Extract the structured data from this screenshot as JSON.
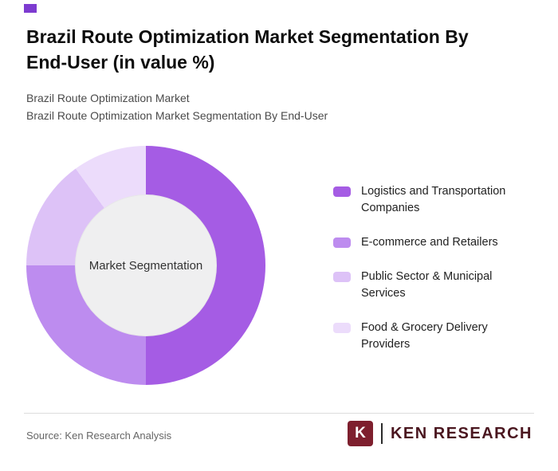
{
  "brand": {
    "accent": "#7d3bd0"
  },
  "page": {
    "title": "Brazil Route Optimization Market Segmentation By End-User (in value %)",
    "subtitle_line1": "Brazil Route Optimization Market",
    "subtitle_line2": "Brazil Route Optimization Market Segmentation By End-User"
  },
  "chart_data": {
    "type": "pie",
    "variant": "donut",
    "title": "Brazil Route Optimization Market Segmentation By End-User (in value %)",
    "center_label": "Market Segmentation",
    "categories": [
      "Logistics and Transportation Companies",
      "E-commerce and Retailers",
      "Public Sector & Municipal Services",
      "Food & Grocery Delivery Providers"
    ],
    "values": [
      50,
      25,
      15,
      10
    ],
    "values_note": "percent of market value, estimated from arc angles (no data labels shown)",
    "colors": [
      "#a55ce4",
      "#bd8cef",
      "#ddc2f7",
      "#ecdcfb"
    ],
    "start_angle_deg": 0,
    "direction": "clockwise",
    "legend_position": "right",
    "hole_color": "#efeff0"
  },
  "footer": {
    "source": "Source: Ken Research Analysis",
    "logo_mark": "K",
    "logo_text": "KEN RESEARCH"
  }
}
